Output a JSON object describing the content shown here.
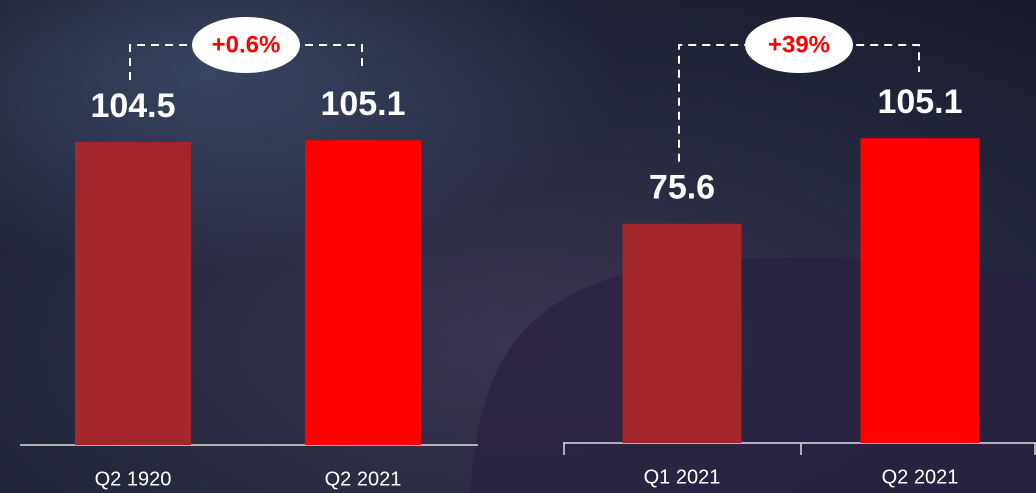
{
  "chart_data": [
    {
      "type": "bar",
      "categories": [
        "Q2 1920",
        "Q2 2021"
      ],
      "values": [
        104.5,
        105.1
      ],
      "colors": [
        "#a3262a",
        "#ff0000"
      ],
      "annotation": "+0.6%"
    },
    {
      "type": "bar",
      "categories": [
        "Q1 2021",
        "Q2 2021"
      ],
      "values": [
        75.6,
        105.1
      ],
      "colors": [
        "#a3262a",
        "#ff0000"
      ],
      "annotation": "+39%"
    }
  ]
}
